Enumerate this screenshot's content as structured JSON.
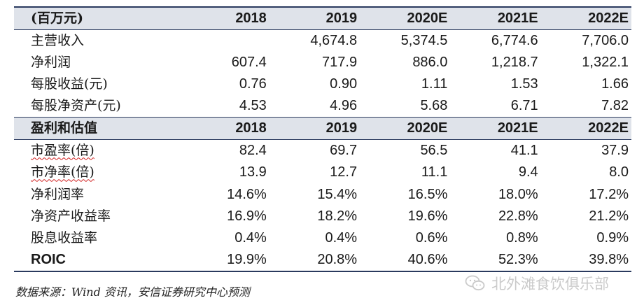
{
  "table": {
    "section1": {
      "header": [
        "(百万元)",
        "2018",
        "2019",
        "2020E",
        "2021E",
        "2022E"
      ],
      "rows": [
        [
          "主营收入",
          "",
          "4,674.8",
          "5,374.5",
          "6,774.6",
          "7,706.0"
        ],
        [
          "净利润",
          "607.4",
          "717.9",
          "886.0",
          "1,218.7",
          "1,322.1"
        ],
        [
          "每股收益(元)",
          "0.76",
          "0.90",
          "1.11",
          "1.53",
          "1.66"
        ],
        [
          "每股净资产(元)",
          "4.53",
          "4.96",
          "5.68",
          "6.71",
          "7.82"
        ]
      ]
    },
    "section2": {
      "header": [
        "盈利和估值",
        "2018",
        "2019",
        "2020E",
        "2021E",
        "2022E"
      ],
      "rows": [
        [
          "市盈率(倍)",
          "82.4",
          "69.7",
          "56.5",
          "41.1",
          "37.9"
        ],
        [
          "市净率(倍)",
          "13.9",
          "12.7",
          "11.1",
          "9.4",
          "8.0"
        ],
        [
          "净利润率",
          "14.6%",
          "15.4%",
          "16.5%",
          "18.0%",
          "17.2%"
        ],
        [
          "净资产收益率",
          "16.9%",
          "18.2%",
          "19.6%",
          "22.8%",
          "21.2%"
        ],
        [
          "股息收益率",
          "0.4%",
          "0.4%",
          "0.6%",
          "0.8%",
          "0.9%"
        ],
        [
          "ROIC",
          "19.9%",
          "20.8%",
          "40.6%",
          "52.3%",
          "39.8%"
        ]
      ]
    }
  },
  "source_note": "数据来源：Wind 资讯，安信证券研究中心预测",
  "watermark": {
    "text": "北外滩食饮俱乐部",
    "icon": "wechat-icon"
  },
  "colors": {
    "header_bg": "#dfe3ea",
    "rule": "#2a3a5e",
    "watermark": "#c8c8c8"
  }
}
